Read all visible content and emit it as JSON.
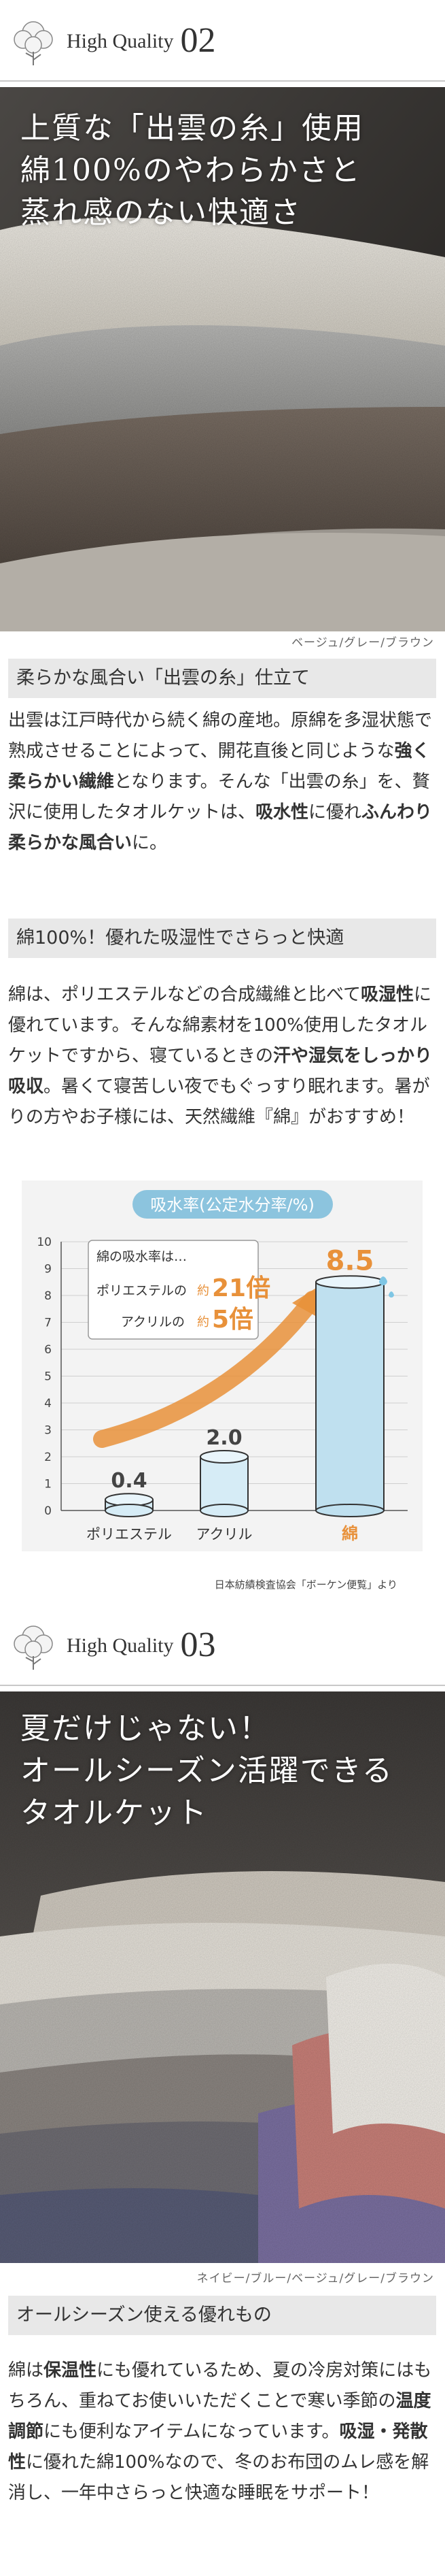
{
  "section1": {
    "label": "High Quality",
    "number": "02",
    "headline_lines": [
      "上質な「出雲の糸」使用",
      "綿100%のやわらかさと",
      "蒸れ感のない快適さ"
    ],
    "caption": "ベージュ/グレー/ブラウン",
    "subheading1": "柔らかな風合い「出雲の糸」仕立て",
    "para1": [
      {
        "t": "出雲は江戸時代から続く綿の産地。原綿を多湿状態で熟成させることによって、開花直後と同じような",
        "b": false
      },
      {
        "t": "強く柔らかい繊維",
        "b": true
      },
      {
        "t": "となります。そんな「出雲の糸」を、贅沢に使用したタオルケットは、",
        "b": false
      },
      {
        "t": "吸水性",
        "b": true
      },
      {
        "t": "に優れ",
        "b": false
      },
      {
        "t": "ふんわり柔らかな風合い",
        "b": true
      },
      {
        "t": "に。",
        "b": false
      }
    ],
    "subheading2": "綿100%！優れた吸湿性でさらっと快適",
    "para2": [
      {
        "t": "綿は、ポリエステルなどの合成繊維と比べて",
        "b": false
      },
      {
        "t": "吸湿性",
        "b": true
      },
      {
        "t": "に優れています。そんな綿素材を100%使用したタオルケットですから、寝ているときの",
        "b": false
      },
      {
        "t": "汗や湿気をしっかり吸収",
        "b": true
      },
      {
        "t": "。暑くて寝苦しい夜でもぐっすり眠れます。暑がりの方やお子様には、天然繊維『綿』がおすすめ！",
        "b": false
      }
    ]
  },
  "chart_data": {
    "type": "bar",
    "title": "吸水率(公定水分率/%)",
    "categories": [
      "ポリエステル",
      "アクリル",
      "綿"
    ],
    "values": [
      0.4,
      2.0,
      8.5
    ],
    "value_labels": [
      "0.4",
      "2.0",
      "8.5"
    ],
    "yticks": [
      "0",
      "1",
      "2",
      "3",
      "4",
      "5",
      "6",
      "7",
      "8",
      "9",
      "10"
    ],
    "ylim": [
      0,
      10
    ],
    "grid": true,
    "callout": {
      "line1": "綿の吸水率は…",
      "line2_prefix": "ポリエステルの",
      "line2_approx": "約",
      "line2_value": "21倍",
      "line3_prefix": "アクリルの",
      "line3_approx": "約",
      "line3_value": "5倍"
    },
    "highlight_color": "#e8913a",
    "title_bg": "#8cc4de",
    "source": "日本紡績検査協会「ボーケン便覧」より"
  },
  "section2": {
    "label": "High Quality",
    "number": "03",
    "headline_lines": [
      "夏だけじゃない！",
      "オールシーズン活躍できる",
      "タオルケット"
    ],
    "caption": "ネイビー/ブルー/ベージュ/グレー/ブラウン",
    "subheading": "オールシーズン使える優れもの",
    "para": [
      {
        "t": "綿は",
        "b": false
      },
      {
        "t": "保温性",
        "b": true
      },
      {
        "t": "にも優れているため、夏の冷房対策にはもちろん、重ねてお使いいただくことで寒い季節の",
        "b": false
      },
      {
        "t": "温度調節",
        "b": true
      },
      {
        "t": "にも便利なアイテムになっています。",
        "b": false
      },
      {
        "t": "吸湿・発散性",
        "b": true
      },
      {
        "t": "に優れた綿100%なので、冬のお布団のムレ感を解消し、一年中さらっと快適な睡眠をサポート！",
        "b": false
      }
    ]
  }
}
